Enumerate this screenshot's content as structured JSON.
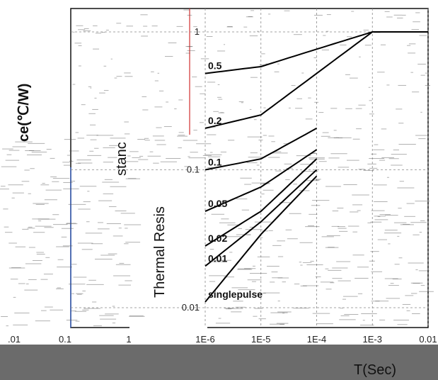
{
  "chart_data": {
    "type": "line",
    "title": "",
    "xlabel": "T(Sec)",
    "ylabel_fragments": [
      "Thermal Resis",
      "stanc",
      "ce(℃/W)"
    ],
    "x_scale": "log",
    "y_scale": "log",
    "xlim": [
      1e-06,
      0.01
    ],
    "ylim": [
      0.01,
      1
    ],
    "x_ticks": [
      "1E-6",
      "1E-5",
      "1E-4",
      "1E-3",
      "0.01"
    ],
    "x_ticks_overlay": [
      ".01",
      "0.1",
      "1"
    ],
    "y_ticks": [
      "0.01",
      "0.1",
      "1"
    ],
    "grid": true,
    "series": [
      {
        "name": "0.5",
        "x": [
          1e-06,
          1e-05,
          0.0001,
          0.001,
          0.01
        ],
        "y": [
          0.5,
          0.56,
          0.75,
          1.0,
          1.0
        ]
      },
      {
        "name": "0.2",
        "x": [
          1e-06,
          1e-05,
          0.0001,
          0.001,
          0.01
        ],
        "y": [
          0.2,
          0.25,
          0.5,
          1.0,
          1.0
        ]
      },
      {
        "name": "0.1",
        "x": [
          1e-06,
          1e-05,
          0.0001
        ],
        "y": [
          0.1,
          0.12,
          0.2
        ]
      },
      {
        "name": "0.05",
        "x": [
          1e-06,
          1e-05,
          0.0001
        ],
        "y": [
          0.05,
          0.075,
          0.14
        ]
      },
      {
        "name": "0.02",
        "x": [
          1e-06,
          1e-05,
          0.0001
        ],
        "y": [
          0.028,
          0.05,
          0.12
        ]
      },
      {
        "name": "0.01",
        "x": [
          1e-06,
          1e-05,
          0.0001
        ],
        "y": [
          0.02,
          0.042,
          0.1
        ]
      },
      {
        "name": "singlepulse",
        "x": [
          1e-06,
          1e-05,
          0.0001
        ],
        "y": [
          0.011,
          0.034,
          0.09
        ]
      }
    ]
  },
  "colors": {
    "curve": "#000000",
    "red_line": "#d03030",
    "blue_line": "#3060d0",
    "band": "#6b6b6b"
  }
}
